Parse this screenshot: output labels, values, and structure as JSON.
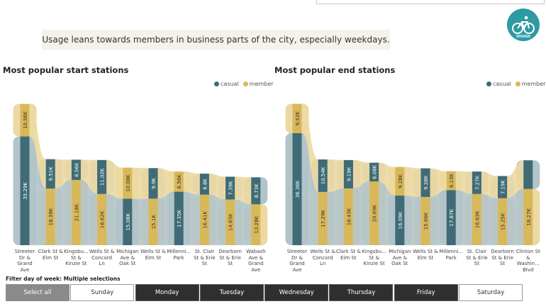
{
  "headline": "Usage leans towards members in business parts of the city, especially weekdays.",
  "colors": {
    "casual": "#3f6b76",
    "member": "#d9b85a",
    "casual_light": "#b3c4c9",
    "member_light": "#ecd9a2"
  },
  "legend": {
    "casual": "casual",
    "member": "member"
  },
  "filter": {
    "label": "Filter day of week: Multiple selections",
    "buttons": [
      {
        "label": "Select all",
        "state": "disabled"
      },
      {
        "label": "Sunday",
        "state": "unselected"
      },
      {
        "label": "Monday",
        "state": "selected"
      },
      {
        "label": "Tuesday",
        "state": "selected"
      },
      {
        "label": "Wednesday",
        "state": "selected"
      },
      {
        "label": "Thursday",
        "state": "selected"
      },
      {
        "label": "Friday",
        "state": "selected"
      },
      {
        "label": "Saturday",
        "state": "unselected"
      }
    ]
  },
  "chart_data": [
    {
      "type": "bar",
      "title": "Most popular start stations",
      "categories": [
        "Streeter Dr & Grand Ave",
        "Clark St & Elm St",
        "Kingsbu... St & Kinzie St",
        "Wells St & Concord Ln",
        "Michigan Ave & Oak St",
        "Wells St & Elm St",
        "Millenni... Park",
        "St. Clair St & Erie St",
        "Dearborn St & Erie St",
        "Wabash Ave & Grand Ave"
      ],
      "series": [
        {
          "name": "casual",
          "values": [
            35.29,
            9.51,
            6.56,
            11.02,
            15.08,
            9.9,
            17.35,
            6.8,
            7.39,
            8.73
          ],
          "labels": [
            "35.29K",
            "9.51K",
            "6.56K",
            "11.02K",
            "15.08K",
            "9.9K",
            "17.35K",
            "6.8K",
            "7.39K",
            "8.73K"
          ]
        },
        {
          "name": "member",
          "values": [
            10.56,
            18.39,
            21.18,
            16.62,
            10.08,
            15.1,
            6.56,
            16.41,
            14.83,
            13.28
          ],
          "labels": [
            "10.56K",
            "18.39K",
            "21.18K",
            "16.62K",
            "10.08K",
            "15.1K",
            "6.56K",
            "16.41K",
            "14.83K",
            "13.28K"
          ]
        }
      ],
      "legend_position": "top-right"
    },
    {
      "type": "bar",
      "title": "Most popular end stations",
      "categories": [
        "Streeter Dr & Grand Ave",
        "Wells St & Concord Ln",
        "Clark St & Elm St",
        "Kingsbu... St & Kinzie St",
        "Michigan Ave & Oak St",
        "Wells St & Elm St",
        "Millenni... Park",
        "St. Clair St & Erie St",
        "Dearborn St & Erie St",
        "Clinton St & Washin... Blvd"
      ],
      "series": [
        {
          "name": "casual",
          "values": [
            36.36,
            10.54,
            9.19,
            6.08,
            16.09,
            9.28,
            17.87,
            7.27,
            7.19,
            9.28
          ],
          "labels": [
            "36.36K",
            "10.54K",
            "9.19K",
            "6.08K",
            "16.09K",
            "9.28K",
            "17.87K",
            "7.27K",
            "7.19K",
            ""
          ]
        },
        {
          "name": "member",
          "values": [
            9.52,
            17.29,
            18.43,
            20.69,
            9.28,
            15.66,
            6.15,
            16.63,
            15.25,
            18.27
          ],
          "labels": [
            "9.52K",
            "17.29K",
            "18.43K",
            "20.69K",
            "9.28K",
            "15.66K",
            "6.15K",
            "16.63K",
            "15.25K",
            "18.27K"
          ]
        }
      ],
      "legend_position": "top-right"
    }
  ]
}
